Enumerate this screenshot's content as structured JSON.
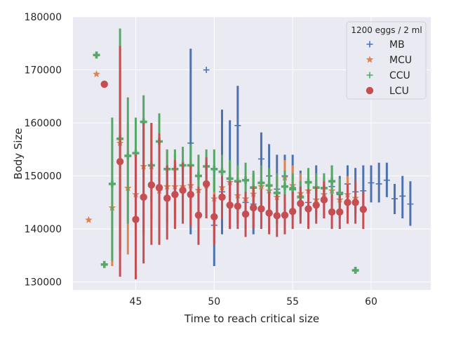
{
  "chart_data": {
    "type": "scatter",
    "title": "",
    "xlabel": "Time to reach critical size",
    "ylabel": "Body Size",
    "xlim": [
      41.0,
      63.8
    ],
    "ylim": [
      128500,
      180000
    ],
    "xticks": [
      45,
      50,
      55,
      60
    ],
    "yticks": [
      130000,
      140000,
      150000,
      160000,
      170000,
      180000
    ],
    "grid": true,
    "legend": {
      "title": "1200 eggs / 2 ml",
      "placement": "top-right"
    },
    "series": [
      {
        "name": "MB",
        "color": "#4c72b0",
        "marker": "plus",
        "points": [
          {
            "x": 48.5,
            "y": 156200,
            "lo": 139000,
            "hi": 174000
          },
          {
            "x": 49.5,
            "y": 170000
          },
          {
            "x": 50.0,
            "y": 140700,
            "lo": 133000,
            "hi": 152000
          },
          {
            "x": 50.5,
            "y": 147000,
            "lo": 139000,
            "hi": 162500
          },
          {
            "x": 51.0,
            "y": 149500,
            "lo": 140000,
            "hi": 160500
          },
          {
            "x": 51.5,
            "y": 159500,
            "lo": 141000,
            "hi": 167000
          },
          {
            "x": 52.0,
            "y": 145000,
            "lo": 140000,
            "hi": 150000
          },
          {
            "x": 52.5,
            "y": 144700,
            "lo": 139000,
            "hi": 150500
          },
          {
            "x": 53.0,
            "y": 153200,
            "lo": 143000,
            "hi": 158200
          },
          {
            "x": 53.5,
            "y": 150000,
            "lo": 143000,
            "hi": 156000
          },
          {
            "x": 54.0,
            "y": 147500,
            "lo": 141000,
            "hi": 154000
          },
          {
            "x": 54.5,
            "y": 150000,
            "lo": 141500,
            "hi": 154000
          },
          {
            "x": 55.0,
            "y": 147800,
            "lo": 142000,
            "hi": 154000
          },
          {
            "x": 55.5,
            "y": 146200,
            "lo": 142500,
            "hi": 151000
          },
          {
            "x": 56.0,
            "y": 145000,
            "lo": 141000,
            "hi": 149000
          },
          {
            "x": 56.5,
            "y": 147800,
            "lo": 143000,
            "hi": 152000
          },
          {
            "x": 57.0,
            "y": 145200,
            "lo": 142000,
            "hi": 149500
          },
          {
            "x": 57.5,
            "y": 148000,
            "lo": 144000,
            "hi": 152000
          },
          {
            "x": 58.0,
            "y": 146500,
            "lo": 142000,
            "hi": 150000
          },
          {
            "x": 58.5,
            "y": 148500,
            "lo": 143000,
            "hi": 152000
          },
          {
            "x": 59.0,
            "y": 147000,
            "lo": 143000,
            "hi": 151500
          },
          {
            "x": 59.5,
            "y": 147200,
            "lo": 143500,
            "hi": 152000
          },
          {
            "x": 60.0,
            "y": 148700,
            "lo": 145000,
            "hi": 152000
          },
          {
            "x": 60.5,
            "y": 148500,
            "lo": 145000,
            "hi": 152500
          },
          {
            "x": 61.0,
            "y": 149200,
            "lo": 146000,
            "hi": 152500
          },
          {
            "x": 61.5,
            "y": 145700,
            "lo": 142800,
            "hi": 148500
          },
          {
            "x": 62.0,
            "y": 146200,
            "lo": 142000,
            "hi": 150000
          },
          {
            "x": 62.5,
            "y": 144700,
            "lo": 140600,
            "hi": 149000
          }
        ]
      },
      {
        "name": "MCU",
        "color": "#dd8452",
        "marker": "star",
        "points": [
          {
            "x": 42.0,
            "y": 141700
          },
          {
            "x": 42.5,
            "y": 169200
          },
          {
            "x": 43.5,
            "y": 144000,
            "lo": 133000,
            "hi": 157000
          },
          {
            "x": 44.0,
            "y": 156200,
            "lo": 136000,
            "hi": 170000
          },
          {
            "x": 44.5,
            "y": 147700,
            "lo": 135200,
            "hi": 160000
          },
          {
            "x": 45.0,
            "y": 146500,
            "lo": 139000,
            "hi": 153500
          },
          {
            "x": 45.5,
            "y": 151800,
            "lo": 139000,
            "hi": 159000
          },
          {
            "x": 46.0,
            "y": 151800,
            "lo": 142000,
            "hi": 159000
          },
          {
            "x": 46.5,
            "y": 147200,
            "lo": 139500,
            "hi": 155000
          },
          {
            "x": 47.0,
            "y": 148000,
            "lo": 141000,
            "hi": 155000
          },
          {
            "x": 47.5,
            "y": 148000,
            "lo": 142000,
            "hi": 154000
          },
          {
            "x": 48.0,
            "y": 148000,
            "lo": 142000,
            "hi": 153000
          },
          {
            "x": 48.5,
            "y": 148200,
            "lo": 142000,
            "hi": 153000
          },
          {
            "x": 49.0,
            "y": 147300,
            "lo": 141000,
            "hi": 152000
          },
          {
            "x": 49.5,
            "y": 148200,
            "lo": 142000,
            "hi": 153000
          },
          {
            "x": 50.0,
            "y": 145700,
            "lo": 140000,
            "hi": 150000
          },
          {
            "x": 50.5,
            "y": 147800,
            "lo": 142500,
            "hi": 152000
          },
          {
            "x": 51.0,
            "y": 148800,
            "lo": 143000,
            "hi": 152500
          },
          {
            "x": 51.5,
            "y": 146300,
            "lo": 142000,
            "hi": 151000
          },
          {
            "x": 52.0,
            "y": 145700,
            "lo": 141500,
            "hi": 150000
          },
          {
            "x": 52.5,
            "y": 146600,
            "lo": 142000,
            "hi": 150500
          },
          {
            "x": 53.0,
            "y": 148000,
            "lo": 143000,
            "hi": 151500
          },
          {
            "x": 53.5,
            "y": 147200,
            "lo": 143000,
            "hi": 151000
          },
          {
            "x": 54.0,
            "y": 146000,
            "lo": 142000,
            "hi": 150000
          },
          {
            "x": 54.5,
            "y": 149700,
            "lo": 145000,
            "hi": 153000
          },
          {
            "x": 55.0,
            "y": 148200,
            "lo": 144000,
            "hi": 152000
          },
          {
            "x": 55.5,
            "y": 146700,
            "lo": 143000,
            "hi": 150500
          },
          {
            "x": 56.0,
            "y": 147200,
            "lo": 143500,
            "hi": 151000
          },
          {
            "x": 56.5,
            "y": 145500,
            "lo": 142000,
            "hi": 149000
          },
          {
            "x": 57.0,
            "y": 146500,
            "lo": 143000,
            "hi": 150000
          },
          {
            "x": 57.5,
            "y": 147200,
            "lo": 143500,
            "hi": 151000
          },
          {
            "x": 58.0,
            "y": 145500,
            "lo": 142000,
            "hi": 149000
          },
          {
            "x": 58.5,
            "y": 146500,
            "lo": 143000,
            "hi": 150000
          },
          {
            "x": 59.0,
            "y": 145800,
            "lo": 142500,
            "hi": 149000
          }
        ]
      },
      {
        "name": "CCU",
        "color": "#55a868",
        "marker": "plus",
        "points": [
          {
            "x": 42.5,
            "y": 172800
          },
          {
            "x": 43.0,
            "y": 133300
          },
          {
            "x": 43.5,
            "y": 148500,
            "lo": 134000,
            "hi": 161000
          },
          {
            "x": 44.0,
            "y": 157000,
            "lo": 136000,
            "hi": 177800
          },
          {
            "x": 44.5,
            "y": 153800,
            "lo": 141000,
            "hi": 164800
          },
          {
            "x": 45.0,
            "y": 154300,
            "lo": 143500,
            "hi": 161000
          },
          {
            "x": 45.5,
            "y": 160200,
            "lo": 151000,
            "hi": 165200
          },
          {
            "x": 46.0,
            "y": 152000,
            "lo": 145000,
            "hi": 160000
          },
          {
            "x": 46.5,
            "y": 156500,
            "lo": 151000,
            "hi": 161800
          },
          {
            "x": 47.0,
            "y": 151300,
            "lo": 146000,
            "hi": 155000
          },
          {
            "x": 47.5,
            "y": 151300,
            "lo": 147000,
            "hi": 155000
          },
          {
            "x": 48.0,
            "y": 152000,
            "lo": 148000,
            "hi": 155500
          },
          {
            "x": 48.5,
            "y": 152000,
            "lo": 148000,
            "hi": 156000
          },
          {
            "x": 49.0,
            "y": 150000,
            "lo": 145000,
            "hi": 154000
          },
          {
            "x": 49.5,
            "y": 151800,
            "lo": 147000,
            "hi": 155000
          },
          {
            "x": 50.0,
            "y": 151300,
            "lo": 147000,
            "hi": 155000
          },
          {
            "x": 50.5,
            "y": 150800,
            "lo": 147000,
            "hi": 154000
          },
          {
            "x": 51.0,
            "y": 149500,
            "lo": 146000,
            "hi": 153000
          },
          {
            "x": 51.5,
            "y": 149000,
            "lo": 146000,
            "hi": 152000
          },
          {
            "x": 52.0,
            "y": 149200,
            "lo": 146000,
            "hi": 152500
          },
          {
            "x": 52.5,
            "y": 147800,
            "lo": 144500,
            "hi": 151000
          },
          {
            "x": 53.0,
            "y": 148700,
            "lo": 145000,
            "hi": 152000
          },
          {
            "x": 53.5,
            "y": 148200,
            "lo": 145000,
            "hi": 151500
          },
          {
            "x": 54.0,
            "y": 146800,
            "lo": 143500,
            "hi": 150500
          },
          {
            "x": 54.5,
            "y": 148000,
            "lo": 145000,
            "hi": 151000
          },
          {
            "x": 55.0,
            "y": 147500,
            "lo": 144500,
            "hi": 150500
          },
          {
            "x": 55.5,
            "y": 146000,
            "lo": 143000,
            "hi": 149000
          },
          {
            "x": 56.0,
            "y": 148800,
            "lo": 146000,
            "hi": 151500
          },
          {
            "x": 56.5,
            "y": 147800,
            "lo": 145000,
            "hi": 150500
          },
          {
            "x": 57.0,
            "y": 147700,
            "lo": 145000,
            "hi": 150500
          },
          {
            "x": 57.5,
            "y": 149000,
            "lo": 146000,
            "hi": 152000
          },
          {
            "x": 58.0,
            "y": 146800,
            "lo": 144000,
            "hi": 149500
          },
          {
            "x": 59.0,
            "y": 132200
          }
        ]
      },
      {
        "name": "LCU",
        "color": "#c44e52",
        "marker": "circle",
        "points": [
          {
            "x": 43.0,
            "y": 167300
          },
          {
            "x": 44.0,
            "y": 152700,
            "lo": 131000,
            "hi": 174500
          },
          {
            "x": 45.0,
            "y": 141800,
            "lo": 130500,
            "hi": 154000
          },
          {
            "x": 45.5,
            "y": 146000,
            "lo": 133500,
            "hi": 160000
          },
          {
            "x": 46.0,
            "y": 148300,
            "lo": 137000,
            "hi": 160000
          },
          {
            "x": 46.5,
            "y": 147800,
            "lo": 137000,
            "hi": 158000
          },
          {
            "x": 47.0,
            "y": 145800,
            "lo": 138000,
            "hi": 152000
          },
          {
            "x": 47.5,
            "y": 146500,
            "lo": 140000,
            "hi": 153000
          },
          {
            "x": 48.0,
            "y": 147300,
            "lo": 141000,
            "hi": 152500
          },
          {
            "x": 48.5,
            "y": 146500,
            "lo": 140500,
            "hi": 152000
          },
          {
            "x": 49.0,
            "y": 142600,
            "lo": 137000,
            "hi": 148000
          },
          {
            "x": 49.5,
            "y": 148500,
            "lo": 142000,
            "hi": 153500
          },
          {
            "x": 50.0,
            "y": 142300,
            "lo": 137000,
            "hi": 146500
          },
          {
            "x": 50.5,
            "y": 146000,
            "lo": 142000,
            "hi": 150000
          },
          {
            "x": 51.0,
            "y": 144500,
            "lo": 140000,
            "hi": 149000
          },
          {
            "x": 51.5,
            "y": 144300,
            "lo": 140000,
            "hi": 149000
          },
          {
            "x": 52.0,
            "y": 142800,
            "lo": 138500,
            "hi": 147000
          },
          {
            "x": 52.5,
            "y": 144000,
            "lo": 140000,
            "hi": 148000
          },
          {
            "x": 53.0,
            "y": 143800,
            "lo": 140000,
            "hi": 147500
          },
          {
            "x": 53.5,
            "y": 143000,
            "lo": 139000,
            "hi": 147000
          },
          {
            "x": 54.0,
            "y": 142500,
            "lo": 138500,
            "hi": 146500
          },
          {
            "x": 54.5,
            "y": 142600,
            "lo": 139000,
            "hi": 146500
          },
          {
            "x": 55.0,
            "y": 143300,
            "lo": 140000,
            "hi": 147000
          },
          {
            "x": 55.5,
            "y": 144800,
            "lo": 141000,
            "hi": 148000
          },
          {
            "x": 56.0,
            "y": 143800,
            "lo": 140000,
            "hi": 147500
          },
          {
            "x": 56.5,
            "y": 144500,
            "lo": 141000,
            "hi": 148000
          },
          {
            "x": 57.0,
            "y": 145500,
            "lo": 142000,
            "hi": 149000
          },
          {
            "x": 57.5,
            "y": 143200,
            "lo": 140000,
            "hi": 146500
          },
          {
            "x": 58.0,
            "y": 143200,
            "lo": 140000,
            "hi": 146500
          },
          {
            "x": 58.5,
            "y": 145000,
            "lo": 141000,
            "hi": 148500
          },
          {
            "x": 59.0,
            "y": 145000,
            "lo": 141000,
            "hi": 149000
          },
          {
            "x": 59.5,
            "y": 143700,
            "lo": 140000,
            "hi": 147000
          }
        ]
      }
    ]
  }
}
